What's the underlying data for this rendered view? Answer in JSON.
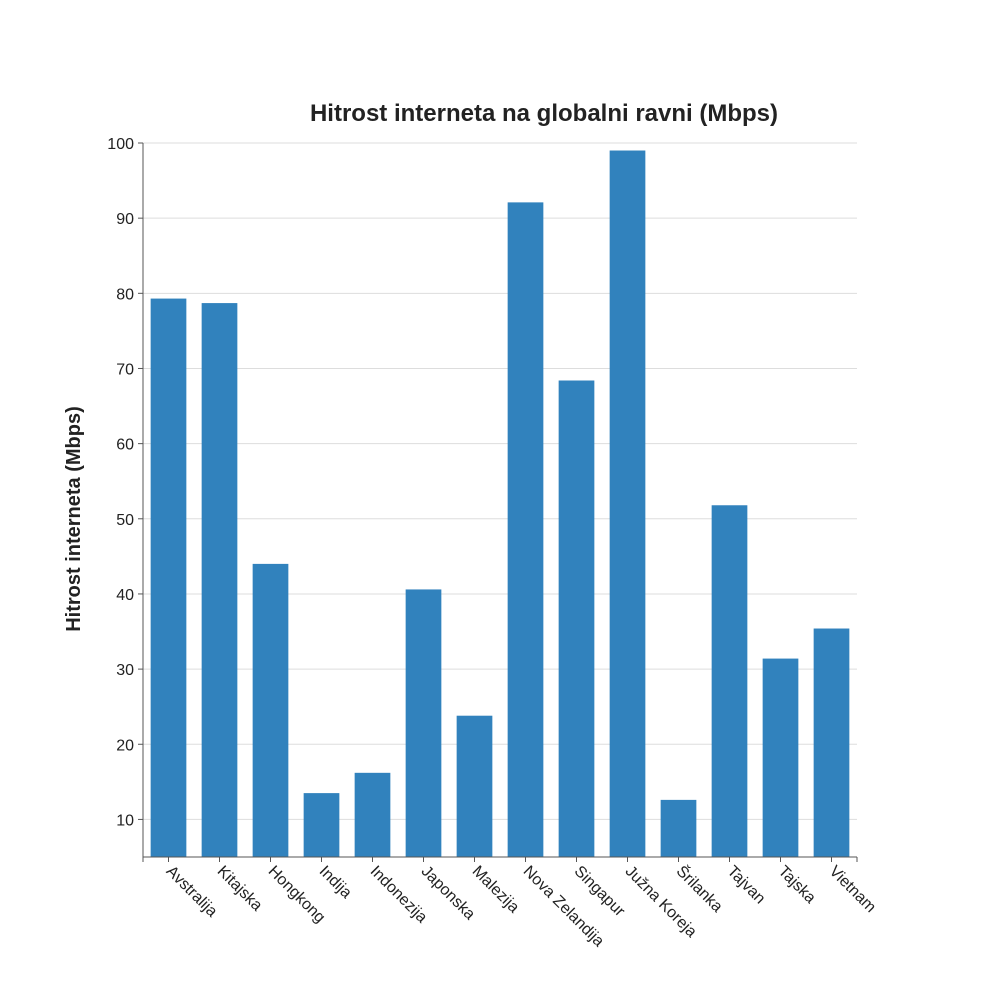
{
  "chart_data": {
    "type": "bar",
    "title": "Hitrost interneta na globalni ravni (Mbps)",
    "xlabel": "",
    "ylabel": "Hitrost interneta (Mbps)",
    "categories": [
      "Avstralija",
      "Kitajska",
      "Hongkong",
      "Indija",
      "Indonezija",
      "Japonska",
      "Malezija",
      "Nova Zelandija",
      "Singapur",
      "Južna Koreja",
      "Šrilanka",
      "Tajvan",
      "Tajska",
      "Vietnam"
    ],
    "values": [
      79.3,
      78.7,
      44.0,
      13.5,
      16.2,
      40.6,
      23.8,
      92.1,
      68.4,
      99.0,
      12.6,
      51.8,
      31.4,
      35.4
    ],
    "ylim": [
      5,
      100
    ],
    "yticks": [
      10,
      20,
      30,
      40,
      50,
      60,
      70,
      80,
      90,
      100
    ],
    "grid": true,
    "legend": "none",
    "bar_color": "#3182bd"
  }
}
